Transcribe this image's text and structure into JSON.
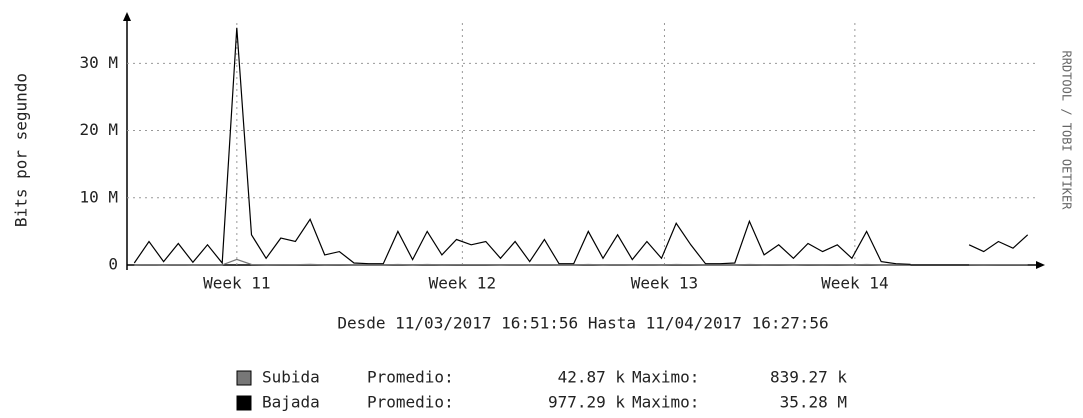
{
  "chart_data": {
    "type": "line",
    "y_label": "Bits por segundo",
    "side_label": "RRDTOOL / TOBI OETIKER",
    "period": "Desde 11/03/2017 16:51:56  Hasta 11/04/2017 16:27:56",
    "average_label": "Promedio:",
    "maximum_label": "Maximo:",
    "xlim": [
      -0.25,
      30.75
    ],
    "xticks": [
      {
        "value": 3.5,
        "label": "Week 11"
      },
      {
        "value": 11.2,
        "label": "Week 12"
      },
      {
        "value": 18.1,
        "label": "Week 13"
      },
      {
        "value": 24.6,
        "label": "Week 14"
      }
    ],
    "ylim": [
      0,
      36000000
    ],
    "yticks": [
      0,
      {
        "value": 10000000,
        "label": "10 M"
      },
      {
        "value": 20000000,
        "label": "20 M"
      },
      {
        "value": 30000000,
        "label": "30 M"
      }
    ],
    "grid": true,
    "x": [
      0,
      0.5,
      1,
      1.5,
      2,
      2.5,
      3,
      3.5,
      4,
      4.5,
      5,
      5.5,
      6,
      6.5,
      7,
      7.5,
      8,
      8.5,
      9,
      9.5,
      10,
      10.5,
      11,
      11.5,
      12,
      12.5,
      13,
      13.5,
      14,
      14.5,
      15,
      15.5,
      16,
      16.5,
      17,
      17.5,
      18,
      18.5,
      19,
      19.5,
      20,
      20.5,
      21,
      21.5,
      22,
      22.5,
      23,
      23.5,
      24,
      24.5,
      25,
      25.5,
      26,
      26.5,
      27,
      27.5,
      28,
      28.5,
      29,
      29.5,
      30,
      30.5
    ],
    "series": [
      {
        "name": "Subida",
        "color": "#777777",
        "average": "42.87 k",
        "maximum": "839.27 k",
        "values": [
          20000,
          60000,
          20000,
          50000,
          20000,
          50000,
          20000,
          839270,
          70000,
          30000,
          60000,
          50000,
          90000,
          30000,
          40000,
          20000,
          10000,
          10000,
          70000,
          20000,
          70000,
          30000,
          50000,
          40000,
          50000,
          20000,
          50000,
          20000,
          50000,
          10000,
          10000,
          70000,
          20000,
          60000,
          20000,
          50000,
          20000,
          80000,
          40000,
          10000,
          10000,
          10000,
          80000,
          30000,
          40000,
          20000,
          40000,
          30000,
          40000,
          20000,
          70000,
          20000,
          10000,
          10000,
          null,
          null,
          null,
          40000,
          30000,
          50000,
          40000,
          60000
        ]
      },
      {
        "name": "Bajada",
        "color": "#000000",
        "average": "977.29 k",
        "maximum": "35.28 M",
        "values": [
          300000,
          3500000,
          500000,
          3200000,
          400000,
          3000000,
          300000,
          35280000,
          4500000,
          1000000,
          4000000,
          3500000,
          6800000,
          1500000,
          2000000,
          300000,
          200000,
          200000,
          5000000,
          800000,
          5000000,
          1500000,
          3800000,
          3000000,
          3500000,
          1000000,
          3500000,
          500000,
          3800000,
          200000,
          200000,
          5000000,
          1000000,
          4500000,
          800000,
          3500000,
          1000000,
          6200000,
          3000000,
          200000,
          200000,
          300000,
          6500000,
          1500000,
          3000000,
          1000000,
          3200000,
          2000000,
          3000000,
          1000000,
          5000000,
          500000,
          200000,
          100000,
          null,
          null,
          null,
          3000000,
          2000000,
          3500000,
          2500000,
          4500000
        ]
      }
    ]
  }
}
